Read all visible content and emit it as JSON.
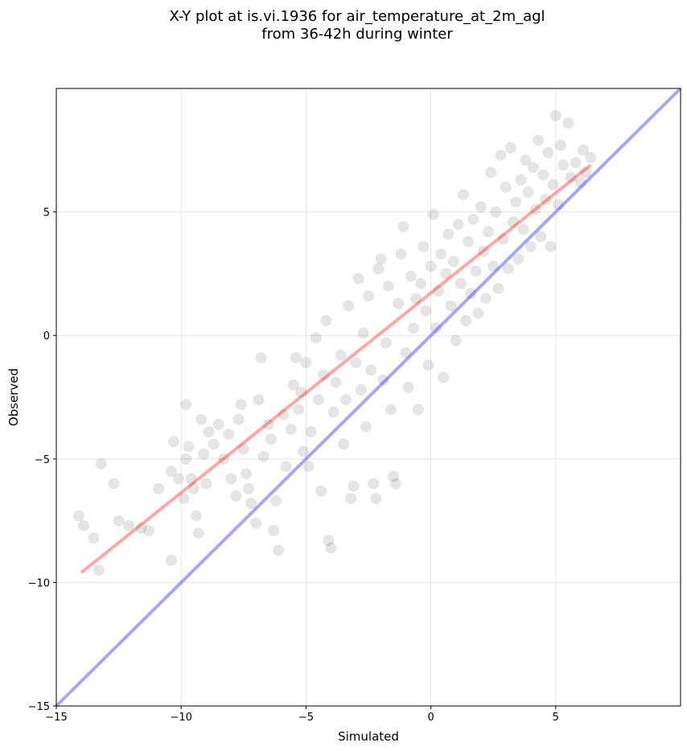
{
  "chart_data": {
    "type": "scatter",
    "title": [
      "X-Y plot at is.vi.1936 for air_temperature_at_2m_agl",
      "from 36-42h during winter"
    ],
    "xlabel": "Simulated",
    "ylabel": "Observed",
    "xlim": [
      -15,
      10
    ],
    "ylim": [
      -15,
      10
    ],
    "xticks": [
      -15,
      -10,
      -5,
      0,
      5
    ],
    "yticks": [
      -15,
      -10,
      -5,
      0,
      5
    ],
    "xtick_labels": [
      "−15",
      "−10",
      "−5",
      "0",
      "5"
    ],
    "ytick_labels": [
      "−15",
      "−10",
      "−5",
      "0",
      "5"
    ],
    "grid": true,
    "colors": {
      "points": "#000000",
      "identity_line": "#0000ff",
      "fit_line": "#ff0000"
    },
    "series": [
      {
        "kind": "points",
        "points": [
          [
            -14.1,
            -7.3
          ],
          [
            -13.9,
            -7.7
          ],
          [
            -13.5,
            -8.2
          ],
          [
            -13.2,
            -5.2
          ],
          [
            -13.3,
            -9.5
          ],
          [
            -12.7,
            -6.0
          ],
          [
            -12.5,
            -7.5
          ],
          [
            -12.1,
            -7.7
          ],
          [
            -11.6,
            -7.8
          ],
          [
            -11.3,
            -7.9
          ],
          [
            -10.9,
            -6.2
          ],
          [
            -10.4,
            -9.1
          ],
          [
            -10.4,
            -5.5
          ],
          [
            -10.3,
            -4.3
          ],
          [
            -10.1,
            -5.8
          ],
          [
            -9.9,
            -6.6
          ],
          [
            -9.8,
            -5.0
          ],
          [
            -9.7,
            -4.5
          ],
          [
            -9.8,
            -2.8
          ],
          [
            -9.6,
            -5.8
          ],
          [
            -9.5,
            -6.2
          ],
          [
            -9.4,
            -7.3
          ],
          [
            -9.3,
            -8.0
          ],
          [
            -9.2,
            -3.4
          ],
          [
            -9.1,
            -4.8
          ],
          [
            -9.0,
            -6.0
          ],
          [
            -8.9,
            -3.9
          ],
          [
            -8.7,
            -4.4
          ],
          [
            -8.5,
            -3.6
          ],
          [
            -8.3,
            -5.0
          ],
          [
            -8.1,
            -4.0
          ],
          [
            -8.0,
            -5.8
          ],
          [
            -7.8,
            -6.5
          ],
          [
            -7.7,
            -3.4
          ],
          [
            -7.6,
            -2.8
          ],
          [
            -7.5,
            -4.6
          ],
          [
            -7.4,
            -5.6
          ],
          [
            -7.3,
            -6.2
          ],
          [
            -7.2,
            -6.8
          ],
          [
            -7.0,
            -7.6
          ],
          [
            -6.9,
            -2.6
          ],
          [
            -6.8,
            -0.9
          ],
          [
            -6.7,
            -4.9
          ],
          [
            -6.5,
            -3.6
          ],
          [
            -6.4,
            -4.2
          ],
          [
            -6.3,
            -7.9
          ],
          [
            -6.1,
            -8.7
          ],
          [
            -6.2,
            -6.7
          ],
          [
            -5.9,
            -3.2
          ],
          [
            -5.8,
            -5.3
          ],
          [
            -5.6,
            -3.8
          ],
          [
            -5.5,
            -2.0
          ],
          [
            -5.4,
            -0.9
          ],
          [
            -5.3,
            -3.0
          ],
          [
            -5.2,
            -2.3
          ],
          [
            -5.1,
            -4.7
          ],
          [
            -5.0,
            -1.1
          ],
          [
            -4.9,
            -5.3
          ],
          [
            -4.8,
            -3.9
          ],
          [
            -4.6,
            -0.1
          ],
          [
            -4.5,
            -2.6
          ],
          [
            -4.4,
            -6.3
          ],
          [
            -4.3,
            -1.6
          ],
          [
            -4.2,
            0.6
          ],
          [
            -4.1,
            -8.3
          ],
          [
            -4.0,
            -8.6
          ],
          [
            -3.9,
            -3.1
          ],
          [
            -3.8,
            -1.9
          ],
          [
            -3.6,
            -0.8
          ],
          [
            -3.5,
            -4.4
          ],
          [
            -3.4,
            -2.6
          ],
          [
            -3.3,
            1.2
          ],
          [
            -3.2,
            -6.6
          ],
          [
            -3.1,
            -6.1
          ],
          [
            -3.0,
            -1.1
          ],
          [
            -2.9,
            2.3
          ],
          [
            -2.8,
            -2.2
          ],
          [
            -2.7,
            0.1
          ],
          [
            -2.6,
            -3.7
          ],
          [
            -2.5,
            1.6
          ],
          [
            -2.4,
            -1.4
          ],
          [
            -2.3,
            -6.0
          ],
          [
            -2.2,
            -6.6
          ],
          [
            -2.1,
            2.7
          ],
          [
            -2.0,
            3.1
          ],
          [
            -1.9,
            -1.8
          ],
          [
            -1.8,
            -0.3
          ],
          [
            -1.7,
            2.0
          ],
          [
            -1.6,
            -3.0
          ],
          [
            -1.5,
            -5.7
          ],
          [
            -1.4,
            -6.0
          ],
          [
            -1.3,
            1.3
          ],
          [
            -1.2,
            3.3
          ],
          [
            -1.1,
            4.4
          ],
          [
            -1.0,
            -0.7
          ],
          [
            -0.9,
            -2.1
          ],
          [
            -0.8,
            2.4
          ],
          [
            -0.7,
            0.3
          ],
          [
            -0.6,
            1.5
          ],
          [
            -0.5,
            -3.0
          ],
          [
            -0.4,
            2.1
          ],
          [
            -0.3,
            3.6
          ],
          [
            -0.2,
            1.0
          ],
          [
            -0.1,
            -1.2
          ],
          [
            0.0,
            2.8
          ],
          [
            0.1,
            4.9
          ],
          [
            0.2,
            0.3
          ],
          [
            0.3,
            1.8
          ],
          [
            0.4,
            3.3
          ],
          [
            0.5,
            -1.7
          ],
          [
            0.6,
            2.5
          ],
          [
            0.7,
            4.1
          ],
          [
            0.8,
            1.2
          ],
          [
            0.9,
            3.0
          ],
          [
            1.0,
            -0.2
          ],
          [
            1.1,
            4.5
          ],
          [
            1.2,
            2.1
          ],
          [
            1.3,
            5.7
          ],
          [
            1.4,
            0.6
          ],
          [
            1.5,
            3.8
          ],
          [
            1.6,
            1.7
          ],
          [
            1.7,
            4.7
          ],
          [
            1.8,
            2.6
          ],
          [
            1.9,
            0.9
          ],
          [
            2.0,
            5.2
          ],
          [
            2.1,
            3.4
          ],
          [
            2.2,
            1.5
          ],
          [
            2.3,
            4.2
          ],
          [
            2.4,
            6.6
          ],
          [
            2.5,
            2.8
          ],
          [
            2.6,
            5.0
          ],
          [
            2.7,
            1.9
          ],
          [
            2.8,
            7.3
          ],
          [
            2.9,
            3.9
          ],
          [
            3.0,
            6.0
          ],
          [
            3.1,
            2.7
          ],
          [
            3.2,
            7.6
          ],
          [
            3.3,
            4.6
          ],
          [
            3.4,
            5.4
          ],
          [
            3.5,
            3.1
          ],
          [
            3.6,
            6.3
          ],
          [
            3.7,
            4.3
          ],
          [
            3.8,
            7.1
          ],
          [
            3.9,
            5.8
          ],
          [
            4.0,
            3.6
          ],
          [
            4.1,
            6.8
          ],
          [
            4.2,
            5.1
          ],
          [
            4.3,
            7.9
          ],
          [
            4.4,
            4.0
          ],
          [
            4.5,
            6.5
          ],
          [
            4.6,
            5.5
          ],
          [
            4.7,
            7.4
          ],
          [
            4.8,
            3.6
          ],
          [
            4.9,
            6.1
          ],
          [
            5.0,
            8.9
          ],
          [
            5.1,
            5.3
          ],
          [
            5.2,
            7.7
          ],
          [
            5.3,
            6.9
          ],
          [
            5.5,
            8.6
          ],
          [
            5.6,
            6.4
          ],
          [
            5.8,
            7.0
          ],
          [
            6.0,
            6.2
          ],
          [
            6.1,
            7.5
          ],
          [
            6.2,
            6.6
          ],
          [
            6.4,
            7.2
          ]
        ]
      },
      {
        "kind": "line",
        "points": [
          [
            -15,
            -15
          ],
          [
            10,
            10
          ]
        ]
      },
      {
        "kind": "line",
        "points": [
          [
            -14.0,
            -9.6
          ],
          [
            6.4,
            6.9
          ]
        ]
      }
    ]
  }
}
